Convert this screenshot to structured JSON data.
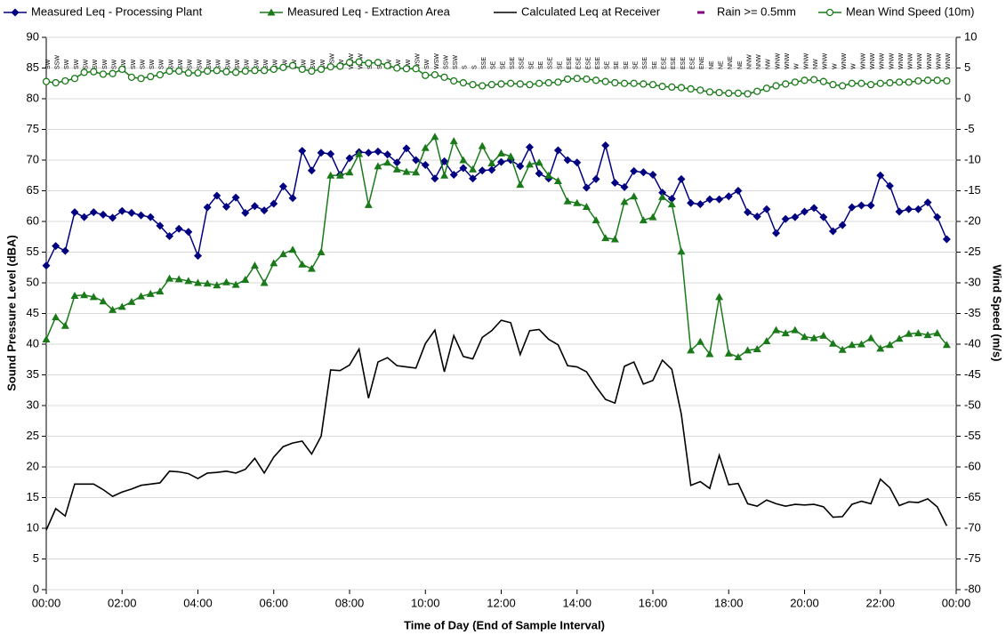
{
  "chart_data": {
    "type": "line",
    "xlabel": "Time of Day (End of Sample Interval)",
    "ylabel": "Sound Pressure Level (dBA)",
    "y2label": "Wind Speed (m/s)",
    "x": [
      0,
      0.25,
      0.5,
      0.75,
      1,
      1.25,
      1.5,
      1.75,
      2,
      2.25,
      2.5,
      2.75,
      3,
      3.25,
      3.5,
      3.75,
      4,
      4.25,
      4.5,
      4.75,
      5,
      5.25,
      5.5,
      5.75,
      6,
      6.25,
      6.5,
      6.75,
      7,
      7.25,
      7.5,
      7.75,
      8,
      8.25,
      8.5,
      8.75,
      9,
      9.25,
      9.5,
      9.75,
      10,
      10.25,
      10.5,
      10.75,
      11,
      11.25,
      11.5,
      11.75,
      12,
      12.25,
      12.5,
      12.75,
      13,
      13.25,
      13.5,
      13.75,
      14,
      14.25,
      14.5,
      14.75,
      15,
      15.25,
      15.5,
      15.75,
      16,
      16.25,
      16.5,
      16.75,
      17,
      17.25,
      17.5,
      17.75,
      18,
      18.25,
      18.5,
      18.75,
      19,
      19.25,
      19.5,
      19.75,
      20,
      20.25,
      20.5,
      20.75,
      21,
      21.25,
      21.5,
      21.75,
      22,
      22.25,
      22.5,
      22.75,
      23,
      23.25,
      23.5,
      23.75
    ],
    "xlim": [
      0,
      24
    ],
    "xticks": [
      {
        "value": 0,
        "label": "00:00"
      },
      {
        "value": 2,
        "label": "02:00"
      },
      {
        "value": 4,
        "label": "04:00"
      },
      {
        "value": 6,
        "label": "06:00"
      },
      {
        "value": 8,
        "label": "08:00"
      },
      {
        "value": 10,
        "label": "10:00"
      },
      {
        "value": 12,
        "label": "12:00"
      },
      {
        "value": 14,
        "label": "14:00"
      },
      {
        "value": 16,
        "label": "16:00"
      },
      {
        "value": 18,
        "label": "18:00"
      },
      {
        "value": 20,
        "label": "20:00"
      },
      {
        "value": 22,
        "label": "22:00"
      },
      {
        "value": 24,
        "label": "00:00"
      }
    ],
    "ylim": [
      0,
      90
    ],
    "yticks": [
      0,
      5,
      10,
      15,
      20,
      25,
      30,
      35,
      40,
      45,
      50,
      55,
      60,
      65,
      70,
      75,
      80,
      85,
      90
    ],
    "y2lim": [
      -80,
      10
    ],
    "y2ticks": [
      -80,
      -75,
      -70,
      -65,
      -60,
      -55,
      -50,
      -45,
      -40,
      -35,
      -30,
      -25,
      -20,
      -15,
      -10,
      -5,
      0,
      5,
      10
    ],
    "grid": true,
    "series": [
      {
        "name": "Measured Leq - Processing Plant",
        "color": "#000080",
        "marker": "diamond",
        "values": [
          52.8,
          56,
          55.2,
          61.5,
          60.7,
          61.5,
          61.1,
          60.6,
          61.7,
          61.4,
          61,
          60.7,
          59.3,
          57.6,
          58.8,
          58.3,
          54.4,
          62.3,
          64.2,
          62.4,
          63.9,
          61.4,
          62.5,
          61.8,
          62.9,
          65.7,
          63.8,
          71.5,
          68.3,
          71.2,
          71,
          67.6,
          70.3,
          71.3,
          71.2,
          71.4,
          70.9,
          69.6,
          71.9,
          70,
          69.2,
          67,
          69.8,
          67.6,
          68.7,
          67,
          68.3,
          68.4,
          69.7,
          70,
          69,
          72.1,
          67.8,
          67,
          71.6,
          70,
          69.6,
          65.5,
          66.9,
          72.4,
          66.3,
          65.6,
          68.2,
          68,
          67.6,
          64.7,
          63.7,
          66.9,
          63,
          62.8,
          63.6,
          63.6,
          64.1,
          65,
          61.5,
          60.8,
          62,
          58.1,
          60.4,
          60.7,
          61.6,
          62.2,
          60.7,
          58.4,
          59.4,
          62.3,
          62.6,
          62.6,
          67.5,
          65.8,
          61.6,
          62,
          62,
          63.1,
          60.7,
          57.1
        ]
      },
      {
        "name": "Measured Leq - Extraction Area",
        "color": "#1a7a1a",
        "marker": "triangle",
        "values": [
          40.8,
          44.4,
          43,
          47.9,
          48,
          47.7,
          47,
          45.6,
          46.1,
          46.9,
          47.8,
          48.2,
          48.6,
          50.7,
          50.6,
          50.3,
          50,
          49.9,
          49.6,
          50.1,
          49.7,
          50.5,
          52.8,
          50,
          53.2,
          54.7,
          55.4,
          53,
          52.3,
          55,
          67.5,
          67.5,
          68,
          71,
          62.7,
          69,
          69.6,
          68.5,
          68.1,
          68,
          72,
          73.8,
          67.5,
          73.1,
          70,
          68.5,
          72.3,
          69.5,
          71.1,
          70.6,
          66,
          69.3,
          69.6,
          67.5,
          66.6,
          63.3,
          63,
          62.4,
          60.2,
          57.3,
          57.1,
          63.2,
          64.1,
          60.2,
          60.7,
          64,
          62.8,
          55.1,
          39,
          40.4,
          38.4,
          47.7,
          38.5,
          37.9,
          39,
          39.2,
          40.5,
          42.3,
          41.8,
          42.3,
          41.2,
          41,
          41.4,
          40.1,
          39.1,
          39.9,
          40,
          41,
          39.3,
          39.9,
          40.9,
          41.7,
          41.8,
          41.5,
          41.8,
          39.9
        ]
      },
      {
        "name": "Calculated Leq at Receiver",
        "color": "#000000",
        "marker": "none",
        "values": [
          9.7,
          13.2,
          12,
          17.2,
          17.2,
          17.2,
          16.3,
          15.2,
          15.9,
          16.4,
          17,
          17.2,
          17.4,
          19.3,
          19.2,
          18.9,
          18.1,
          19,
          19.1,
          19.3,
          19,
          19.6,
          21.4,
          19,
          21.6,
          23.3,
          23.9,
          24.2,
          22.1,
          25,
          35.8,
          35.7,
          36.6,
          39.2,
          31.2,
          37.1,
          37.8,
          36.5,
          36.3,
          36.1,
          40.1,
          42.3,
          35.5,
          41.4,
          38,
          37.6,
          41.1,
          42.2,
          43.9,
          43.5,
          38.3,
          42.2,
          42.4,
          40.8,
          39.9,
          36.5,
          36.3,
          35.5,
          33.1,
          31,
          30.4,
          36.4,
          37.1,
          33.5,
          34.1,
          37.4,
          35.9,
          28.6,
          17,
          17.6,
          16.5,
          21.9,
          17.1,
          17.3,
          14,
          13.6,
          14.6,
          14,
          13.6,
          13.9,
          13.8,
          13.9,
          13.5,
          11.8,
          11.9,
          13.9,
          14.4,
          14,
          18,
          16.6,
          13.7,
          14.3,
          14.2,
          14.8,
          13.5,
          10.4
        ]
      },
      {
        "name": "Rain >= 0.5mm",
        "color": "#800080",
        "marker": "dash",
        "axis": "y2",
        "values": [
          null,
          null,
          null,
          null,
          null,
          null,
          null,
          null,
          null,
          null,
          null,
          null,
          null,
          null,
          null,
          null,
          null,
          null,
          null,
          null,
          null,
          null,
          null,
          null,
          null,
          null,
          null,
          null,
          null,
          null,
          null,
          null,
          null,
          null,
          null,
          null,
          null,
          null,
          null,
          null,
          null,
          null,
          null,
          null,
          null,
          null,
          null,
          null,
          null,
          null,
          null,
          null,
          null,
          null,
          null,
          null,
          null,
          null,
          null,
          null,
          null,
          null,
          null,
          null,
          null,
          null,
          null,
          null,
          null,
          null,
          null,
          null,
          null,
          null,
          null,
          null,
          null,
          null,
          null,
          null,
          null,
          null,
          null,
          null,
          null,
          null,
          null,
          null,
          null,
          null,
          null,
          null,
          null,
          null,
          null,
          null
        ]
      },
      {
        "name": "Mean Wind Speed (10m)",
        "color": "#1a7a1a",
        "marker": "circle-open",
        "axis": "y2",
        "values": [
          2.8,
          2.6,
          2.9,
          3.3,
          4.3,
          4.4,
          4,
          4.1,
          4.8,
          3.5,
          3.3,
          3.6,
          3.9,
          4.5,
          4.5,
          4.2,
          4.2,
          4.5,
          4.6,
          4.4,
          4.3,
          4.5,
          4.6,
          4.6,
          4.8,
          5.1,
          5.4,
          4.8,
          4.5,
          4.8,
          5.2,
          5.3,
          5.9,
          6,
          5.8,
          5.9,
          5.4,
          5,
          4.9,
          4.9,
          3.8,
          3.9,
          3.5,
          2.9,
          2.6,
          2.3,
          2.1,
          2.3,
          2.4,
          2.5,
          2.4,
          2.3,
          2.5,
          2.6,
          2.7,
          3.2,
          3.3,
          3.2,
          3,
          2.8,
          2.6,
          2.5,
          2.5,
          2.4,
          2.3,
          2,
          1.9,
          1.8,
          1.6,
          1.4,
          1.1,
          1,
          0.9,
          0.9,
          0.8,
          1.2,
          1.7,
          2.1,
          2.4,
          2.7,
          3,
          3.1,
          2.8,
          2.3,
          2.1,
          2.5,
          2.5,
          2.3,
          2.5,
          2.6,
          2.7,
          2.7,
          2.9,
          3,
          3,
          2.9
        ]
      }
    ],
    "wind_direction": [
      "SW",
      "SSW",
      "SW",
      "SW",
      "SW",
      "SW",
      "SW",
      "SW",
      "SW",
      "SW",
      "SW",
      "SW",
      "SW",
      "SW",
      "SW",
      "SW",
      "SW",
      "SW",
      "SW",
      "SW",
      "SW",
      "SW",
      "SW",
      "SW",
      "SW",
      "SW",
      "SW",
      "SW",
      "SW",
      "SW",
      "WSW",
      "SW",
      "WSW",
      "WSW",
      "SW",
      "SW",
      "SW",
      "SW",
      "SW",
      "WSW",
      "SW",
      "WSW",
      "SSW",
      "SSW",
      "S",
      "S",
      "SSE",
      "SE",
      "SE",
      "SSE",
      "SSE",
      "SE",
      "SE",
      "SSE",
      "SE",
      "ESE",
      "ESE",
      "ESE",
      "ESE",
      "SE",
      "SE",
      "SE",
      "SE",
      "SSE",
      "SE",
      "ESE",
      "ESE",
      "ESE",
      "ESE",
      "ENE",
      "NE",
      "NE",
      "NNE",
      "NE",
      "NNW",
      "NNW",
      "NW",
      "WNW",
      "WNW",
      "W",
      "WNW",
      "NW",
      "WNW",
      "W",
      "WNW",
      "W",
      "WNW",
      "WNW",
      "WNW",
      "WNW",
      "WNW",
      "WNW",
      "WNW",
      "WNW",
      "WNW",
      "WNW"
    ]
  }
}
